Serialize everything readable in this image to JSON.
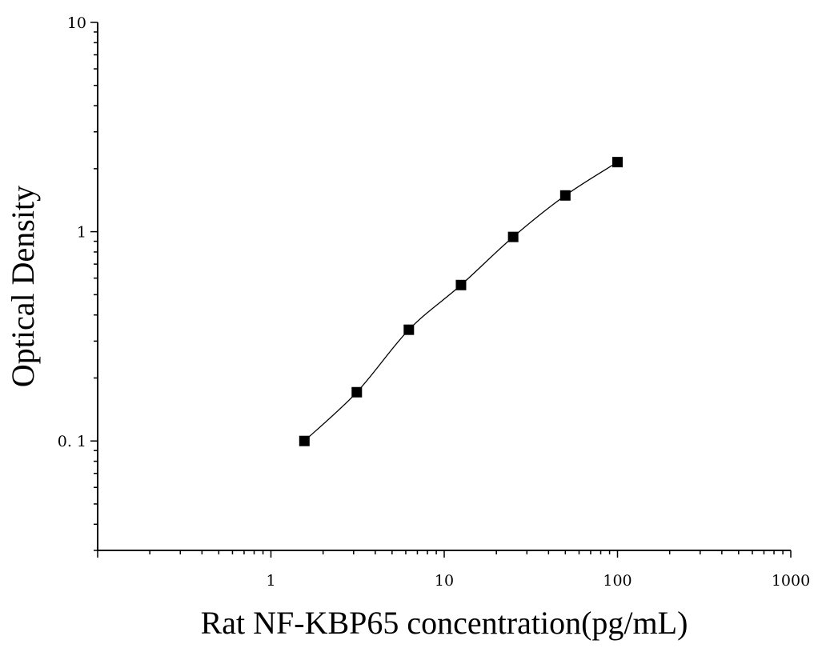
{
  "chart_data": {
    "type": "scatter",
    "xlabel": "Rat NF-KBP65 concentration(pg/mL)",
    "ylabel": "Optical Density",
    "x_scale": "log",
    "y_scale": "log",
    "xlim": [
      0.1,
      1000
    ],
    "ylim": [
      0.03,
      10
    ],
    "x_ticks": [
      {
        "value": 1,
        "label": "1"
      },
      {
        "value": 10,
        "label": "10"
      },
      {
        "value": 100,
        "label": "100"
      },
      {
        "value": 1000,
        "label": "1000"
      }
    ],
    "y_ticks": [
      {
        "value": 0.1,
        "label": "0. 1"
      },
      {
        "value": 1,
        "label": "1"
      },
      {
        "value": 10,
        "label": "10"
      }
    ],
    "series": [
      {
        "x": [
          1.56,
          3.13,
          6.25,
          12.5,
          25,
          50,
          100
        ],
        "y": [
          0.1,
          0.171,
          0.34,
          0.556,
          0.944,
          1.49,
          2.15
        ],
        "marker": "square",
        "color": "#000000",
        "fit_line": true
      }
    ],
    "grid": false,
    "legend": "none"
  }
}
